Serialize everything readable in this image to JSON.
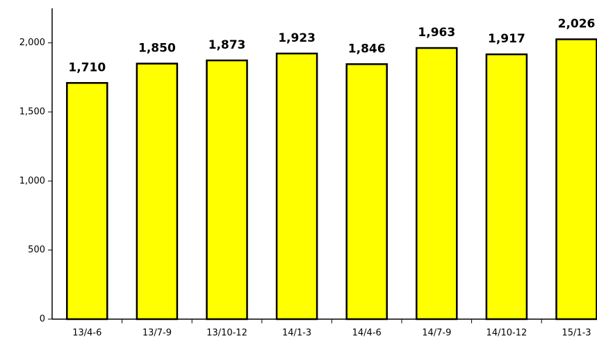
{
  "chart_data": {
    "type": "bar",
    "categories": [
      "13/4-6",
      "13/7-9",
      "13/10-12",
      "14/1-3",
      "14/4-6",
      "14/7-9",
      "14/10-12",
      "15/1-3"
    ],
    "values": [
      1710,
      1850,
      1873,
      1923,
      1846,
      1963,
      1917,
      2026
    ],
    "value_labels": [
      "1,710",
      "1,850",
      "1,873",
      "1,923",
      "1,846",
      "1,963",
      "1,917",
      "2,026"
    ],
    "color": "#ffff00",
    "ylim": [
      0,
      2250
    ],
    "yticks": [
      0,
      500,
      {
        "value": 1000,
        "label": "1,000"
      },
      {
        "value": 1500,
        "label": "1,500"
      },
      {
        "value": 2000,
        "label": "2,000"
      }
    ],
    "grid": false
  }
}
